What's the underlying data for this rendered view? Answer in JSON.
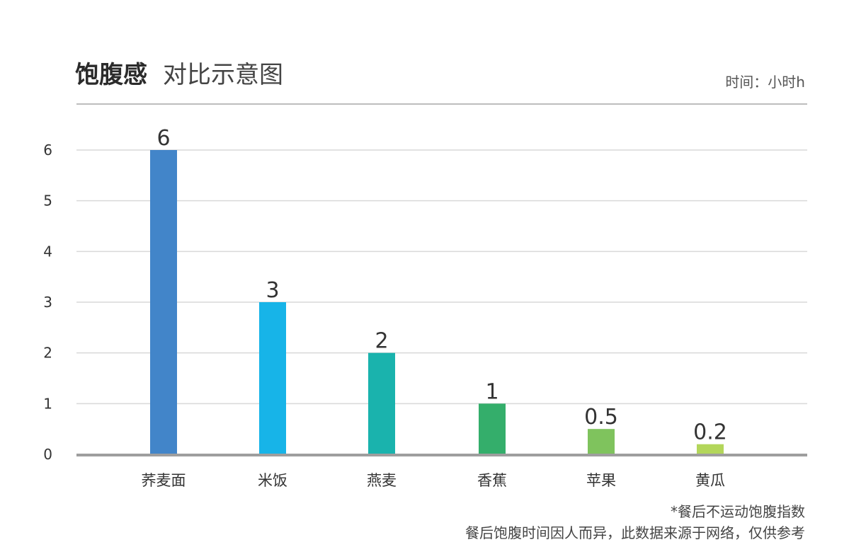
{
  "header": {
    "title_main": "饱腹感",
    "title_sub": "对比示意图",
    "unit": "时间：小时h"
  },
  "chart_data": {
    "type": "bar",
    "categories": [
      "荞麦面",
      "米饭",
      "燕麦",
      "香蕉",
      "苹果",
      "黄瓜"
    ],
    "values": [
      6,
      3,
      2,
      1,
      0.5,
      0.2
    ],
    "value_labels": [
      "6",
      "3",
      "2",
      "1",
      "0.5",
      "0.2"
    ],
    "title": "饱腹感 对比示意图",
    "xlabel": "",
    "ylabel": "时间：小时h",
    "ylim": [
      0,
      6
    ],
    "yticks": [
      0,
      1,
      2,
      3,
      4,
      5,
      6
    ],
    "grid": true,
    "legend": "none",
    "colors": [
      "#4285c9",
      "#17b4e8",
      "#1ab3ad",
      "#34ae6b",
      "#7fc35d",
      "#b3d65a"
    ],
    "gridline_color": "#d9d9d9",
    "baseline_color": "#9e9e9e"
  },
  "footnotes": {
    "line1": "*餐后不运动饱腹指数",
    "line2": "餐后饱腹时间因人而异，此数据来源于网络，仅供参考"
  }
}
